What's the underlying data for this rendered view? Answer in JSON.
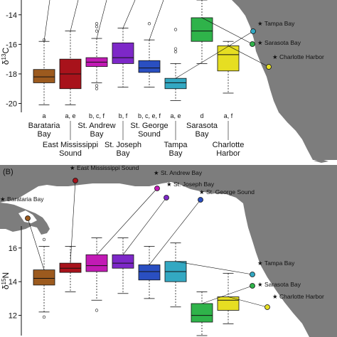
{
  "chart_data": [
    {
      "type": "box",
      "panel_label": "",
      "ylabel": "δ13C",
      "ylim": [
        -20.6,
        -13.0
      ],
      "yticks": [
        -20,
        -18,
        -16,
        -14
      ],
      "categories": [
        "Barataria Bay",
        "East Mississippi Sound",
        "St. Andrew Bay",
        "St. Joseph Bay",
        "St. George Sound",
        "Tampa Bay",
        "Sarasota Bay",
        "Charlotte Harbor"
      ],
      "category_labels": [
        {
          "lines": [
            "Barataria",
            "Bay"
          ],
          "row": 1
        },
        {
          "lines": [
            "East Mississippi",
            "Sound"
          ],
          "row": 2
        },
        {
          "lines": [
            "St. Andrew",
            "Bay"
          ],
          "row": 1
        },
        {
          "lines": [
            "St. Joseph",
            "Bay"
          ],
          "row": 2
        },
        {
          "lines": [
            "St. George",
            "Sound"
          ],
          "row": 1
        },
        {
          "lines": [
            "Tampa",
            "Bay"
          ],
          "row": 2
        },
        {
          "lines": [
            "Sarasota",
            "Bay"
          ],
          "row": 1
        },
        {
          "lines": [
            "Charlotte",
            "Harbor"
          ],
          "row": 2
        }
      ],
      "letters": [
        "a",
        "a, e",
        "b, c, f",
        "b, f",
        "b, c, e, f",
        "a, e",
        "d",
        "a, f"
      ],
      "boxes": [
        {
          "min": -20.1,
          "q1": -18.6,
          "median": -18.2,
          "q3": -17.7,
          "max": -15.8,
          "outliers": [
            -15.7
          ]
        },
        {
          "min": -20.1,
          "q1": -19.0,
          "median": -18.0,
          "q3": -17.0,
          "max": -15.1,
          "outliers": []
        },
        {
          "min": -18.6,
          "q1": -17.5,
          "median": -17.2,
          "q3": -16.9,
          "max": -15.6,
          "outliers": [
            -14.6,
            -14.8,
            -15.1,
            -18.8,
            -19.0
          ]
        },
        {
          "min": -18.9,
          "q1": -17.3,
          "median": -16.9,
          "q3": -15.9,
          "max": -14.9,
          "outliers": []
        },
        {
          "min": -18.9,
          "q1": -17.9,
          "median": -17.6,
          "q3": -17.1,
          "max": -15.7,
          "outliers": [
            -14.6
          ]
        },
        {
          "min": -19.8,
          "q1": -19.0,
          "median": -18.6,
          "q3": -18.3,
          "max": -17.3,
          "outliers": [
            -15.0,
            -16.3,
            -16.5
          ]
        },
        {
          "min": -17.3,
          "q1": -15.8,
          "median": -15.1,
          "q3": -14.2,
          "max": -13.0,
          "outliers": []
        },
        {
          "min": -19.3,
          "q1": -17.8,
          "median": -16.7,
          "q3": -16.1,
          "max": -15.8,
          "outliers": []
        }
      ],
      "colors": [
        "#9c5a1e",
        "#a8121b",
        "#c21ab5",
        "#7d28c8",
        "#2a4fc1",
        "#33a8c2",
        "#2fb34a",
        "#e6de22"
      ],
      "map_labels": [
        "Tampa Bay",
        "Sarasota Bay",
        "Charlotte Harbor"
      ]
    },
    {
      "type": "box",
      "panel_label": "(B)",
      "ylabel": "δ15N",
      "ylim": [
        10.8,
        17.3
      ],
      "yticks": [
        12,
        14,
        16
      ],
      "categories": [
        "Barataria Bay",
        "East Mississippi Sound",
        "St. Andrew Bay",
        "St. Joseph Bay",
        "St. George Sound",
        "Tampa Bay",
        "Sarasota Bay",
        "Charlotte Harbor"
      ],
      "boxes": [
        {
          "min": 12.2,
          "q1": 13.8,
          "median": 14.2,
          "q3": 14.7,
          "max": 16.1,
          "outliers": [
            16.5,
            11.9
          ]
        },
        {
          "min": 13.4,
          "q1": 14.55,
          "median": 14.8,
          "q3": 15.1,
          "max": 16.1,
          "outliers": []
        },
        {
          "min": 12.9,
          "q1": 14.6,
          "median": 14.95,
          "q3": 15.6,
          "max": 16.6,
          "outliers": [
            12.3
          ]
        },
        {
          "min": 13.3,
          "q1": 14.8,
          "median": 15.1,
          "q3": 15.6,
          "max": 16.6,
          "outliers": []
        },
        {
          "min": 13.0,
          "q1": 14.1,
          "median": 14.6,
          "q3": 15.0,
          "max": 16.1,
          "outliers": []
        },
        {
          "min": 12.5,
          "q1": 14.0,
          "median": 14.6,
          "q3": 15.2,
          "max": 16.3,
          "outliers": []
        },
        {
          "min": 10.8,
          "q1": 11.6,
          "median": 12.0,
          "q3": 12.7,
          "max": 13.4,
          "outliers": []
        },
        {
          "min": 11.5,
          "q1": 12.3,
          "median": 12.9,
          "q3": 13.1,
          "max": 14.5,
          "outliers": []
        }
      ],
      "colors": [
        "#9c5a1e",
        "#a8121b",
        "#c21ab5",
        "#7d28c8",
        "#2a4fc1",
        "#33a8c2",
        "#2fb34a",
        "#e6de22"
      ],
      "map_labels": [
        "Barataria Bay",
        "East Mississippi Sound",
        "St. Andrew Bay",
        "St. Joseph Bay",
        "St. George Sound",
        "Tampa Bay",
        "Sarasota Bay",
        "Charlotte Harbor"
      ]
    }
  ]
}
